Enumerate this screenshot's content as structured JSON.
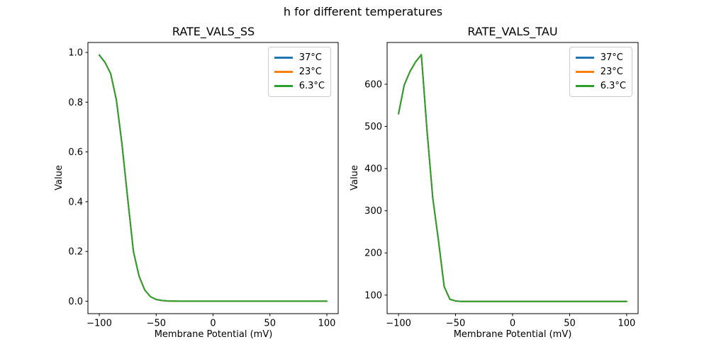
{
  "figure": {
    "suptitle": "h for different temperatures",
    "background": "#ffffff"
  },
  "chart_data": [
    {
      "type": "line",
      "title": "RATE_VALS_SS",
      "xlabel": "Membrane Potential (mV)",
      "ylabel": "Value",
      "xlim": [
        -110,
        110
      ],
      "ylim": [
        -0.05,
        1.04
      ],
      "xticks": [
        -100,
        -50,
        0,
        50,
        100
      ],
      "xtick_labels": [
        "−100",
        "−50",
        "0",
        "50",
        "100"
      ],
      "yticks": [
        0.0,
        0.2,
        0.4,
        0.6,
        0.8,
        1.0
      ],
      "ytick_labels": [
        "0.0",
        "0.2",
        "0.4",
        "0.6",
        "0.8",
        "1.0"
      ],
      "grid": false,
      "legend_position": "upper right",
      "x": [
        -100,
        -95,
        -90,
        -85,
        -80,
        -75,
        -70,
        -65,
        -60,
        -55,
        -50,
        -45,
        -40,
        -35,
        -30,
        -25,
        -20,
        -15,
        -10,
        -5,
        0,
        5,
        10,
        15,
        20,
        25,
        30,
        35,
        40,
        45,
        50,
        55,
        60,
        65,
        70,
        75,
        80,
        85,
        90,
        95,
        100
      ],
      "series": [
        {
          "label": "37°C",
          "color": "#1f77b4",
          "values": [
            0.99,
            0.96,
            0.915,
            0.81,
            0.63,
            0.41,
            0.2,
            0.1,
            0.045,
            0.018,
            0.007,
            0.003,
            0.001,
            0.0005,
            0.0002,
            0.0001,
            0,
            0,
            0,
            0,
            0,
            0,
            0,
            0,
            0,
            0,
            0,
            0,
            0,
            0,
            0,
            0,
            0,
            0,
            0,
            0,
            0,
            0,
            0,
            0,
            0
          ]
        },
        {
          "label": "23°C",
          "color": "#ff7f0e",
          "values": [
            0.99,
            0.96,
            0.915,
            0.81,
            0.63,
            0.41,
            0.2,
            0.1,
            0.045,
            0.018,
            0.007,
            0.003,
            0.001,
            0.0005,
            0.0002,
            0.0001,
            0,
            0,
            0,
            0,
            0,
            0,
            0,
            0,
            0,
            0,
            0,
            0,
            0,
            0,
            0,
            0,
            0,
            0,
            0,
            0,
            0,
            0,
            0,
            0,
            0
          ]
        },
        {
          "label": "6.3°C",
          "color": "#2ca02c",
          "values": [
            0.99,
            0.96,
            0.915,
            0.81,
            0.63,
            0.41,
            0.2,
            0.1,
            0.045,
            0.018,
            0.007,
            0.003,
            0.001,
            0.0005,
            0.0002,
            0.0001,
            0,
            0,
            0,
            0,
            0,
            0,
            0,
            0,
            0,
            0,
            0,
            0,
            0,
            0,
            0,
            0,
            0,
            0,
            0,
            0,
            0,
            0,
            0,
            0,
            0
          ]
        }
      ],
      "note": "The three temperature curves overlap exactly; only the last-drawn (6.3°C, green) is visible."
    },
    {
      "type": "line",
      "title": "RATE_VALS_TAU",
      "xlabel": "Membrane Potential (mV)",
      "ylabel": "Value",
      "xlim": [
        -110,
        110
      ],
      "ylim": [
        56,
        699
      ],
      "xticks": [
        -100,
        -50,
        0,
        50,
        100
      ],
      "xtick_labels": [
        "−100",
        "−50",
        "0",
        "50",
        "100"
      ],
      "yticks": [
        100,
        200,
        300,
        400,
        500,
        600
      ],
      "ytick_labels": [
        "100",
        "200",
        "300",
        "400",
        "500",
        "600"
      ],
      "grid": false,
      "legend_position": "upper right",
      "x": [
        -100,
        -95,
        -90,
        -85,
        -80,
        -75,
        -70,
        -65,
        -60,
        -55,
        -50,
        -45,
        -40,
        -35,
        -30,
        -25,
        -20,
        -15,
        -10,
        -5,
        0,
        5,
        10,
        15,
        20,
        25,
        30,
        35,
        40,
        45,
        50,
        55,
        60,
        65,
        70,
        75,
        80,
        85,
        90,
        95,
        100
      ],
      "series": [
        {
          "label": "37°C",
          "color": "#1f77b4",
          "values": [
            530,
            598,
            630,
            653,
            670,
            490,
            330,
            230,
            120,
            90,
            86,
            85,
            85,
            85,
            85,
            85,
            85,
            85,
            85,
            85,
            85,
            85,
            85,
            85,
            85,
            85,
            85,
            85,
            85,
            85,
            85,
            85,
            85,
            85,
            85,
            85,
            85,
            85,
            85,
            85,
            85
          ]
        },
        {
          "label": "23°C",
          "color": "#ff7f0e",
          "values": [
            530,
            598,
            630,
            653,
            670,
            490,
            330,
            230,
            120,
            90,
            86,
            85,
            85,
            85,
            85,
            85,
            85,
            85,
            85,
            85,
            85,
            85,
            85,
            85,
            85,
            85,
            85,
            85,
            85,
            85,
            85,
            85,
            85,
            85,
            85,
            85,
            85,
            85,
            85,
            85,
            85
          ]
        },
        {
          "label": "6.3°C",
          "color": "#2ca02c",
          "values": [
            530,
            598,
            630,
            653,
            670,
            490,
            330,
            230,
            120,
            90,
            86,
            85,
            85,
            85,
            85,
            85,
            85,
            85,
            85,
            85,
            85,
            85,
            85,
            85,
            85,
            85,
            85,
            85,
            85,
            85,
            85,
            85,
            85,
            85,
            85,
            85,
            85,
            85,
            85,
            85,
            85
          ]
        }
      ],
      "note": "The three temperature curves overlap exactly; only the last-drawn (6.3°C, green) is visible."
    }
  ]
}
